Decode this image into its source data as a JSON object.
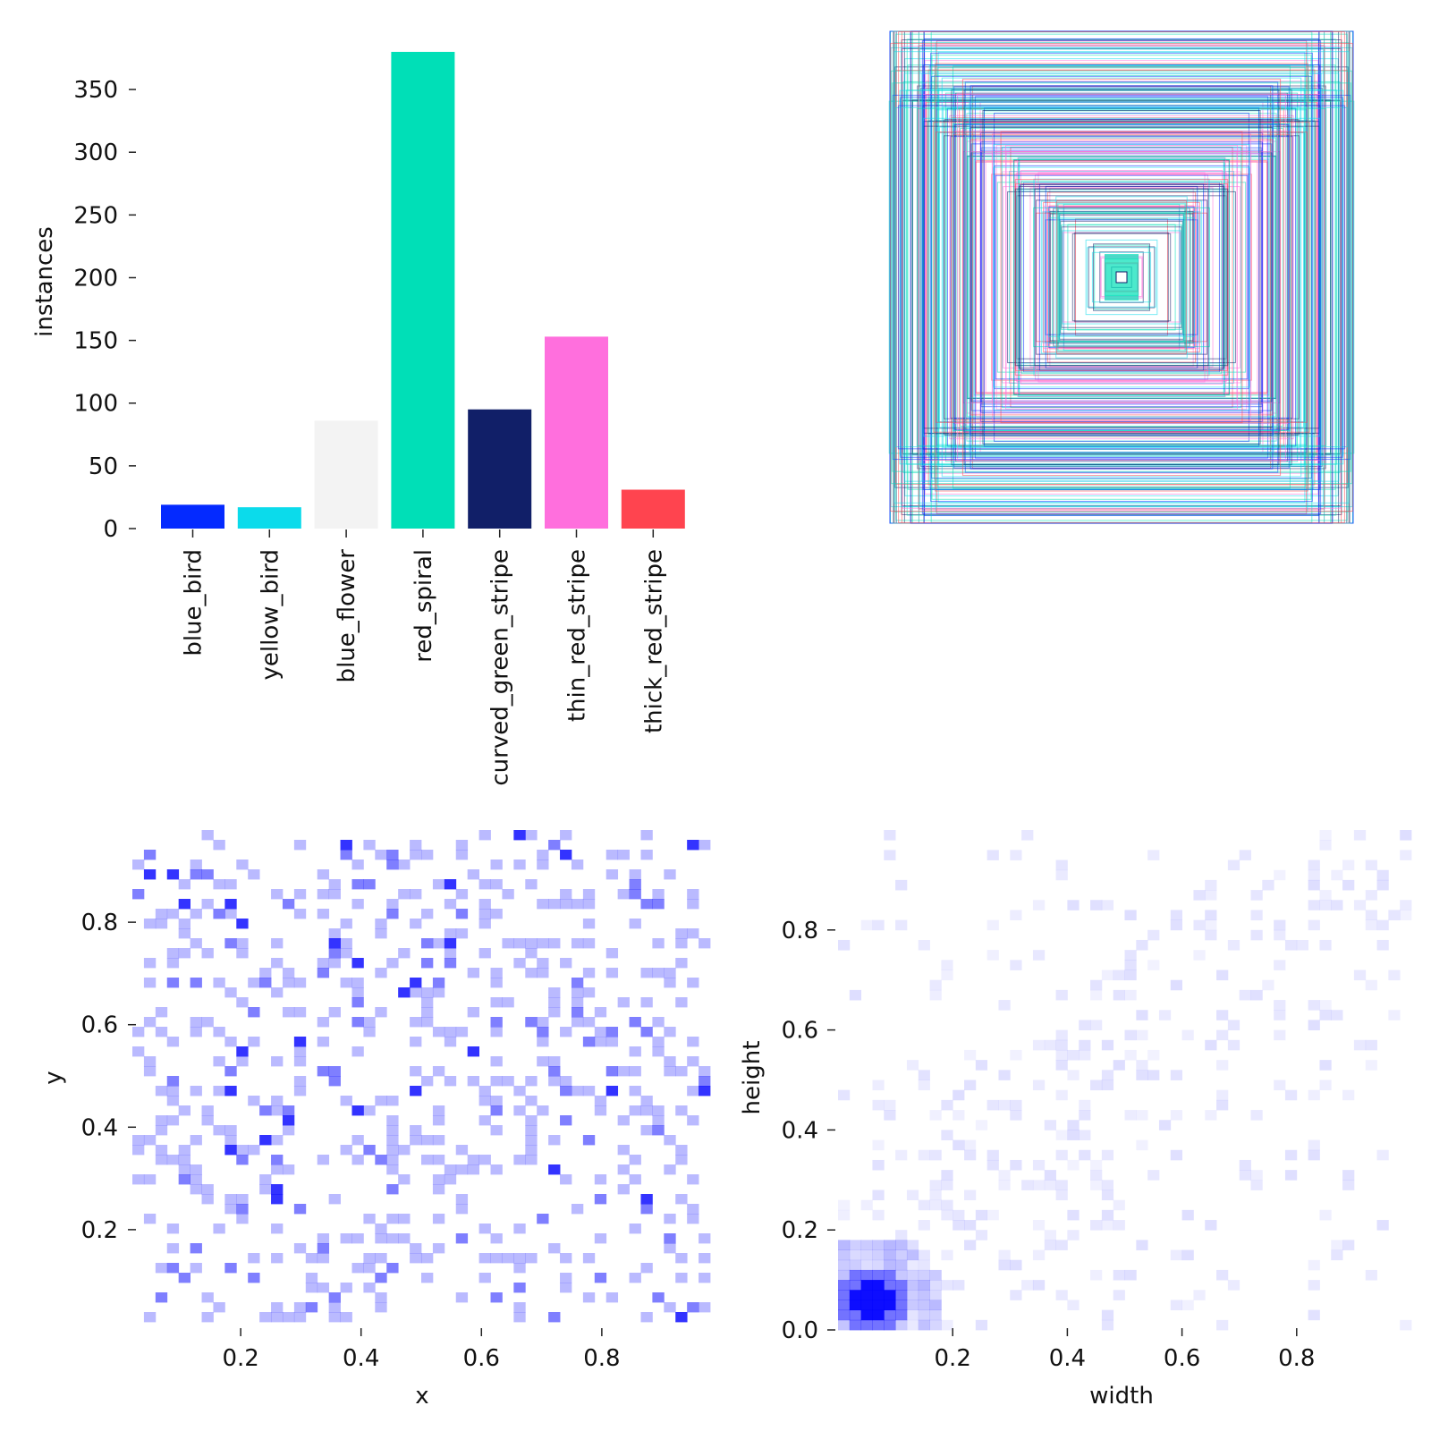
{
  "chart_data": [
    {
      "type": "bar",
      "title": "",
      "xlabel": "",
      "ylabel": "instances",
      "categories": [
        "blue_bird",
        "yellow_bird",
        "blue_flower",
        "red_spiral",
        "curved_green_stripe",
        "thin_red_stripe",
        "thick_red_stripe"
      ],
      "values": [
        19,
        17,
        86,
        380,
        95,
        153,
        31
      ],
      "colors": [
        "#042aff",
        "#0bdbeb",
        "#f3f3f3",
        "#00dfb7",
        "#111f68",
        "#ff6fdd",
        "#ff444f"
      ],
      "ylim": [
        0,
        380
      ],
      "yticks": [
        0,
        50,
        100,
        150,
        200,
        250,
        300,
        350
      ],
      "grid": false
    },
    {
      "type": "box_overlay",
      "title": "",
      "description_of_marks": "centered bounding boxes of all instances, colored by class",
      "xticks": [],
      "yticks": []
    },
    {
      "type": "heatmap",
      "title": "",
      "xlabel": "x",
      "ylabel": "y",
      "xlim": [
        0.02,
        0.98
      ],
      "ylim": [
        0.02,
        0.98
      ],
      "xticks": [
        "0.2",
        "0.4",
        "0.6",
        "0.8"
      ],
      "yticks": [
        "0.2",
        "0.4",
        "0.6",
        "0.8"
      ],
      "color": "#0000ff",
      "bins": 50
    },
    {
      "type": "heatmap",
      "title": "",
      "xlabel": "width",
      "ylabel": "height",
      "xlim": [
        0,
        1
      ],
      "ylim": [
        0,
        1
      ],
      "xticks": [
        "0.2",
        "0.4",
        "0.6",
        "0.8"
      ],
      "yticks": [
        "0.0",
        "0.2",
        "0.4",
        "0.6",
        "0.8"
      ],
      "color": "#0000ff",
      "bins": 50
    }
  ]
}
